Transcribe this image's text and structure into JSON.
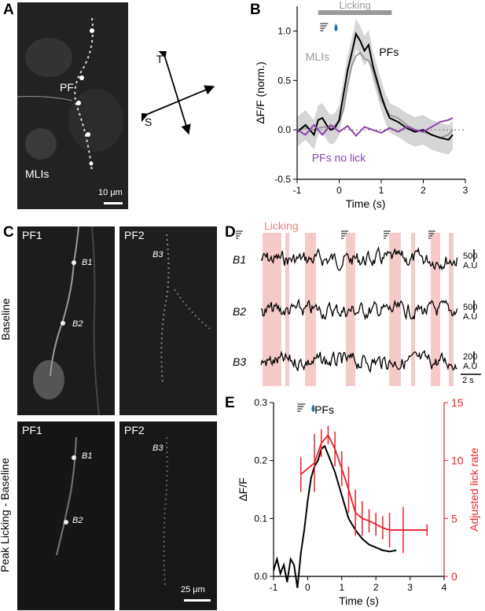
{
  "panel_labels": {
    "A": "A",
    "B": "B",
    "C": "C",
    "D": "D",
    "E": "E"
  },
  "panelA": {
    "pf_label": "PF",
    "mli_label": "MLIs",
    "scale_label": "10 μm",
    "axis_t": "T",
    "axis_s": "S"
  },
  "panelC": {
    "col1_label": "PF1",
    "col2_label": "PF2",
    "row1_label": "Baseline",
    "row2_label": "Peak Licking - Baseline",
    "bouton_b1": "B1",
    "bouton_b2": "B2",
    "bouton_b3": "B3",
    "scale_label": "25 μm"
  },
  "panelD": {
    "licking_label": "Licking",
    "rows": [
      {
        "name": "B1",
        "scale_value": "500",
        "scale_unit": "A.U"
      },
      {
        "name": "B2",
        "scale_value": "500",
        "scale_unit": "A.U"
      },
      {
        "name": "B3",
        "scale_value": "200",
        "scale_unit": "A.U"
      }
    ],
    "time_scale": "2 s"
  },
  "chart_data": [
    {
      "type": "line",
      "panel": "B",
      "title": "",
      "xlabel": "Time (s)",
      "ylabel": "ΔF/F (norm.)",
      "xlim": [
        -1,
        3
      ],
      "ylim": [
        -0.5,
        1.25
      ],
      "xticks": [
        -1,
        0,
        1,
        2,
        3
      ],
      "yticks": [
        -0.5,
        0.0,
        0.5,
        1.0
      ],
      "bar_label": "Licking",
      "licking_bar": [
        -0.5,
        1.25
      ],
      "series": [
        {
          "name": "PFs",
          "color": "#000000",
          "x": [
            -1,
            -0.8,
            -0.6,
            -0.5,
            -0.4,
            -0.3,
            -0.2,
            -0.1,
            0,
            0.1,
            0.2,
            0.3,
            0.4,
            0.5,
            0.6,
            0.7,
            0.8,
            0.9,
            1.0,
            1.1,
            1.2,
            1.4,
            1.6,
            1.8,
            2.0,
            2.2,
            2.4,
            2.6,
            2.7
          ],
          "y": [
            -0.02,
            0.05,
            -0.05,
            0.1,
            0.12,
            0.05,
            0.0,
            0.02,
            0.1,
            0.35,
            0.6,
            0.78,
            0.97,
            0.9,
            0.8,
            0.86,
            0.65,
            0.5,
            0.35,
            0.22,
            0.12,
            0.08,
            0.02,
            -0.02,
            0.0,
            -0.05,
            -0.08,
            -0.1,
            -0.05
          ]
        },
        {
          "name": "MLIs",
          "color": "#999999",
          "x": [
            -1,
            -0.8,
            -0.6,
            -0.4,
            -0.2,
            0,
            0.1,
            0.2,
            0.3,
            0.4,
            0.5,
            0.6,
            0.7,
            0.8,
            0.9,
            1.0,
            1.2,
            1.4,
            1.6,
            1.8,
            2.0,
            2.2,
            2.4,
            2.6,
            2.7
          ],
          "y": [
            0.0,
            0.02,
            0.0,
            0.03,
            0.02,
            0.08,
            0.2,
            0.45,
            0.65,
            0.75,
            0.78,
            0.72,
            0.7,
            0.6,
            0.45,
            0.3,
            0.15,
            0.12,
            0.05,
            0.0,
            -0.02,
            -0.05,
            -0.08,
            -0.05,
            0.0
          ]
        },
        {
          "name": "PFs no lick",
          "color": "#8e44ad",
          "x": [
            -1,
            -0.8,
            -0.6,
            -0.4,
            -0.2,
            0,
            0.2,
            0.4,
            0.6,
            0.8,
            1.0,
            1.2,
            1.4,
            1.6,
            1.8,
            2.0,
            2.2,
            2.4,
            2.6,
            2.7
          ],
          "y": [
            0.0,
            -0.05,
            0.05,
            -0.05,
            0.05,
            -0.02,
            0.04,
            -0.06,
            0.03,
            0.0,
            -0.03,
            0.02,
            -0.02,
            0.03,
            0.0,
            -0.02,
            0.03,
            0.08,
            0.1,
            0.12
          ]
        }
      ]
    },
    {
      "type": "line",
      "panel": "E",
      "title": "PFs",
      "xlabel": "Time (s)",
      "ylabel": "ΔF/F",
      "y2label": "Adjusted lick rate",
      "xlim": [
        -1,
        4
      ],
      "ylim": [
        0,
        0.3
      ],
      "y2lim": [
        0,
        15
      ],
      "xticks": [
        -1,
        0,
        1,
        2,
        3,
        4
      ],
      "yticks": [
        0.0,
        0.1,
        0.2,
        0.3
      ],
      "y2ticks": [
        0,
        5,
        10,
        15
      ],
      "series": [
        {
          "name": "ΔF/F",
          "color": "#000000",
          "x": [
            -1,
            -0.9,
            -0.8,
            -0.7,
            -0.6,
            -0.5,
            -0.4,
            -0.3,
            -0.2,
            -0.1,
            0,
            0.1,
            0.2,
            0.3,
            0.4,
            0.5,
            0.6,
            0.8,
            1.0,
            1.2,
            1.4,
            1.6,
            1.8,
            2.0,
            2.2,
            2.4,
            2.6
          ],
          "y": [
            0.01,
            0.03,
            0.005,
            0.02,
            -0.01,
            0.03,
            0.02,
            -0.02,
            0.04,
            0.08,
            0.13,
            0.17,
            0.19,
            0.2,
            0.22,
            0.225,
            0.21,
            0.18,
            0.14,
            0.1,
            0.08,
            0.065,
            0.055,
            0.05,
            0.045,
            0.043,
            0.045
          ]
        },
        {
          "name": "Adjusted lick rate",
          "color": "#e8202a",
          "x": [
            -0.2,
            0.2,
            0.4,
            0.6,
            0.8,
            1.0,
            1.2,
            1.4,
            1.6,
            1.8,
            2.0,
            2.2,
            2.4,
            2.8,
            3.5
          ],
          "y": [
            8.8,
            9.8,
            11.5,
            12.2,
            11,
            9.3,
            7.5,
            5.5,
            5.0,
            4.8,
            4.5,
            4.2,
            4.0,
            4.0,
            4.0
          ],
          "err": [
            1.5,
            2.5,
            1.2,
            0.8,
            1.5,
            1.5,
            2,
            2,
            1.5,
            1.0,
            1.0,
            1.0,
            1.5,
            2.0,
            0.5
          ]
        }
      ]
    }
  ]
}
